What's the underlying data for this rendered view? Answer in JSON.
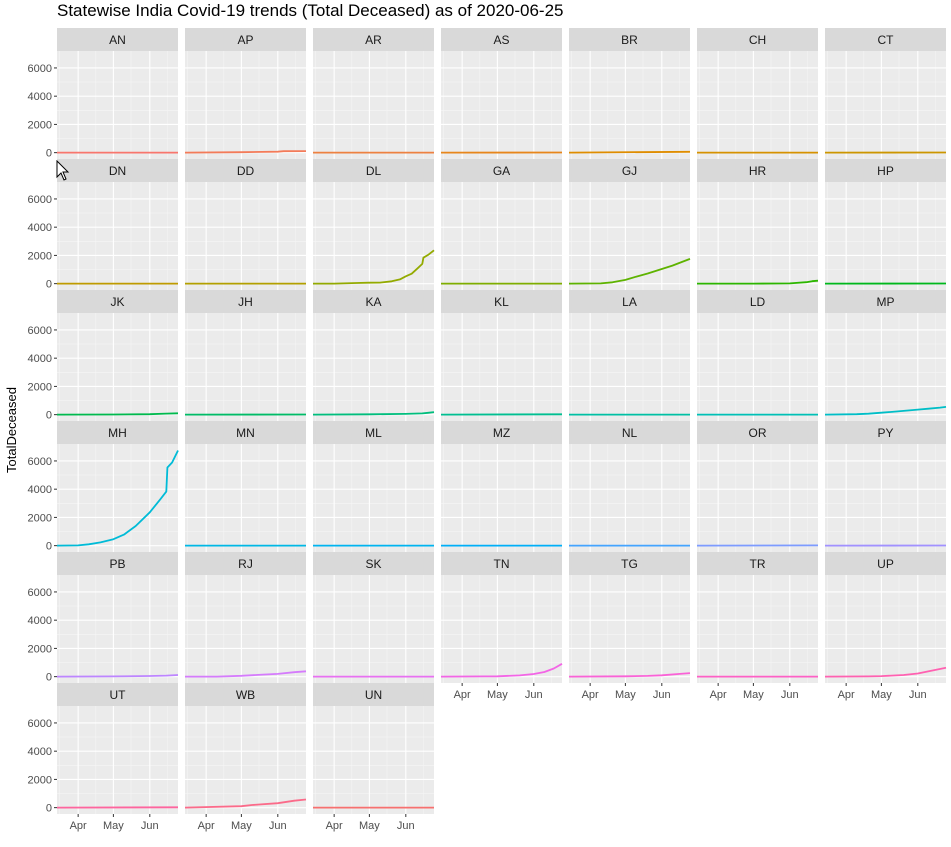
{
  "chart_data": {
    "type": "line",
    "title": "Statewise India Covid-19 trends (Total Deceased) as of 2020-06-25",
    "ylabel": "TotalDeceased",
    "xlabel": "",
    "layout": "facet_wrap",
    "ylim": [
      -450,
      7200
    ],
    "yticks": [
      0,
      2000,
      4000,
      6000
    ],
    "xlim": [
      "2020-03-14",
      "2020-06-25"
    ],
    "xticks": [
      {
        "date": "2020-04-01",
        "label": "Apr"
      },
      {
        "date": "2020-05-01",
        "label": "May"
      },
      {
        "date": "2020-06-01",
        "label": "Jun"
      }
    ],
    "grid": true,
    "legend": "none",
    "series": [
      {
        "name": "AN",
        "color": "#F8766D",
        "points": [
          [
            "2020-03-14",
            0
          ],
          [
            "2020-06-25",
            0
          ]
        ]
      },
      {
        "name": "AP",
        "color": "#F37B59",
        "points": [
          [
            "2020-03-14",
            0
          ],
          [
            "2020-05-01",
            31
          ],
          [
            "2020-06-01",
            64
          ],
          [
            "2020-06-06",
            100
          ],
          [
            "2020-06-25",
            111
          ]
        ]
      },
      {
        "name": "AR",
        "color": "#ED8141",
        "points": [
          [
            "2020-03-14",
            0
          ],
          [
            "2020-06-25",
            0
          ]
        ]
      },
      {
        "name": "AS",
        "color": "#E7861B",
        "points": [
          [
            "2020-03-14",
            0
          ],
          [
            "2020-06-25",
            9
          ]
        ]
      },
      {
        "name": "BR",
        "color": "#DF8D00",
        "points": [
          [
            "2020-03-14",
            0
          ],
          [
            "2020-06-25",
            60
          ]
        ]
      },
      {
        "name": "CH",
        "color": "#D69200",
        "points": [
          [
            "2020-03-14",
            0
          ],
          [
            "2020-06-25",
            6
          ]
        ]
      },
      {
        "name": "CT",
        "color": "#CC9600",
        "points": [
          [
            "2020-03-14",
            0
          ],
          [
            "2020-06-25",
            10
          ]
        ]
      },
      {
        "name": "DN",
        "color": "#BF9B00",
        "points": [
          [
            "2020-03-14",
            0
          ],
          [
            "2020-06-25",
            0
          ]
        ]
      },
      {
        "name": "DD",
        "color": "#B3A000",
        "points": [
          [
            "2020-03-14",
            0
          ],
          [
            "2020-06-25",
            0
          ]
        ]
      },
      {
        "name": "DL",
        "color": "#93AA00",
        "points": [
          [
            "2020-03-14",
            0
          ],
          [
            "2020-04-01",
            2
          ],
          [
            "2020-04-20",
            47
          ],
          [
            "2020-05-01",
            64
          ],
          [
            "2020-05-10",
            73
          ],
          [
            "2020-05-20",
            168
          ],
          [
            "2020-05-27",
            303
          ],
          [
            "2020-06-01",
            523
          ],
          [
            "2020-06-06",
            708
          ],
          [
            "2020-06-11",
            1085
          ],
          [
            "2020-06-15",
            1400
          ],
          [
            "2020-06-16",
            1837
          ],
          [
            "2020-06-20",
            2035
          ],
          [
            "2020-06-25",
            2365
          ]
        ]
      },
      {
        "name": "GA",
        "color": "#7FAE00",
        "points": [
          [
            "2020-03-14",
            0
          ],
          [
            "2020-06-25",
            1
          ]
        ]
      },
      {
        "name": "GJ",
        "color": "#5EB300",
        "points": [
          [
            "2020-03-14",
            0
          ],
          [
            "2020-04-10",
            19
          ],
          [
            "2020-04-20",
            95
          ],
          [
            "2020-05-01",
            262
          ],
          [
            "2020-05-10",
            493
          ],
          [
            "2020-05-20",
            719
          ],
          [
            "2020-06-01",
            1038
          ],
          [
            "2020-06-10",
            1280
          ],
          [
            "2020-06-18",
            1533
          ],
          [
            "2020-06-25",
            1753
          ]
        ]
      },
      {
        "name": "HR",
        "color": "#2CB600",
        "points": [
          [
            "2020-03-14",
            0
          ],
          [
            "2020-05-01",
            3
          ],
          [
            "2020-06-01",
            21
          ],
          [
            "2020-06-15",
            100
          ],
          [
            "2020-06-20",
            175
          ],
          [
            "2020-06-25",
            211
          ]
        ]
      },
      {
        "name": "HP",
        "color": "#00B81C",
        "points": [
          [
            "2020-03-14",
            0
          ],
          [
            "2020-06-25",
            9
          ]
        ]
      },
      {
        "name": "JK",
        "color": "#00BA4E",
        "points": [
          [
            "2020-03-14",
            0
          ],
          [
            "2020-05-01",
            8
          ],
          [
            "2020-06-01",
            33
          ],
          [
            "2020-06-15",
            72
          ],
          [
            "2020-06-25",
            94
          ]
        ]
      },
      {
        "name": "JH",
        "color": "#00BC67",
        "points": [
          [
            "2020-03-14",
            0
          ],
          [
            "2020-06-25",
            11
          ]
        ]
      },
      {
        "name": "KA",
        "color": "#00BE7D",
        "points": [
          [
            "2020-03-14",
            0
          ],
          [
            "2020-05-01",
            22
          ],
          [
            "2020-06-01",
            52
          ],
          [
            "2020-06-15",
            89
          ],
          [
            "2020-06-20",
            132
          ],
          [
            "2020-06-25",
            180
          ]
        ]
      },
      {
        "name": "KL",
        "color": "#00BF91",
        "points": [
          [
            "2020-03-14",
            0
          ],
          [
            "2020-06-25",
            22
          ]
        ]
      },
      {
        "name": "LA",
        "color": "#00C0A4",
        "points": [
          [
            "2020-03-14",
            0
          ],
          [
            "2020-06-25",
            1
          ]
        ]
      },
      {
        "name": "LD",
        "color": "#00C0B6",
        "points": [
          [
            "2020-03-14",
            0
          ],
          [
            "2020-06-25",
            0
          ]
        ]
      },
      {
        "name": "MP",
        "color": "#00BEC7",
        "points": [
          [
            "2020-03-14",
            0
          ],
          [
            "2020-04-10",
            33
          ],
          [
            "2020-04-20",
            70
          ],
          [
            "2020-05-01",
            137
          ],
          [
            "2020-05-15",
            232
          ],
          [
            "2020-06-01",
            358
          ],
          [
            "2020-06-10",
            420
          ],
          [
            "2020-06-20",
            501
          ],
          [
            "2020-06-25",
            550
          ]
        ]
      },
      {
        "name": "MH",
        "color": "#00BBD7",
        "points": [
          [
            "2020-03-14",
            0
          ],
          [
            "2020-04-01",
            17
          ],
          [
            "2020-04-10",
            97
          ],
          [
            "2020-04-20",
            232
          ],
          [
            "2020-05-01",
            459
          ],
          [
            "2020-05-10",
            779
          ],
          [
            "2020-05-20",
            1390
          ],
          [
            "2020-06-01",
            2362
          ],
          [
            "2020-06-10",
            3289
          ],
          [
            "2020-06-15",
            3830
          ],
          [
            "2020-06-16",
            5537
          ],
          [
            "2020-06-20",
            5893
          ],
          [
            "2020-06-25",
            6739
          ]
        ]
      },
      {
        "name": "MN",
        "color": "#00B8E5",
        "points": [
          [
            "2020-03-14",
            0
          ],
          [
            "2020-06-25",
            0
          ]
        ]
      },
      {
        "name": "ML",
        "color": "#00B4F0",
        "points": [
          [
            "2020-03-14",
            0
          ],
          [
            "2020-06-25",
            1
          ]
        ]
      },
      {
        "name": "MZ",
        "color": "#00AFF8",
        "points": [
          [
            "2020-03-14",
            0
          ],
          [
            "2020-06-25",
            0
          ]
        ]
      },
      {
        "name": "NL",
        "color": "#44A4FF",
        "points": [
          [
            "2020-03-14",
            0
          ],
          [
            "2020-06-25",
            0
          ]
        ]
      },
      {
        "name": "OR",
        "color": "#7D9BFF",
        "points": [
          [
            "2020-03-14",
            0
          ],
          [
            "2020-06-25",
            14
          ]
        ]
      },
      {
        "name": "PY",
        "color": "#A191FF",
        "points": [
          [
            "2020-03-14",
            0
          ],
          [
            "2020-06-25",
            9
          ]
        ]
      },
      {
        "name": "PB",
        "color": "#BD85FF",
        "points": [
          [
            "2020-03-14",
            0
          ],
          [
            "2020-05-01",
            21
          ],
          [
            "2020-06-01",
            45
          ],
          [
            "2020-06-15",
            71
          ],
          [
            "2020-06-25",
            120
          ]
        ]
      },
      {
        "name": "RJ",
        "color": "#D57BFC",
        "points": [
          [
            "2020-03-14",
            0
          ],
          [
            "2020-04-10",
            5
          ],
          [
            "2020-05-01",
            58
          ],
          [
            "2020-05-15",
            126
          ],
          [
            "2020-06-01",
            198
          ],
          [
            "2020-06-15",
            313
          ],
          [
            "2020-06-25",
            379
          ]
        ]
      },
      {
        "name": "SK",
        "color": "#E870F2",
        "points": [
          [
            "2020-03-14",
            0
          ],
          [
            "2020-06-25",
            0
          ]
        ]
      },
      {
        "name": "TN",
        "color": "#F365E6",
        "points": [
          [
            "2020-03-14",
            0
          ],
          [
            "2020-04-20",
            17
          ],
          [
            "2020-05-01",
            27
          ],
          [
            "2020-05-20",
            87
          ],
          [
            "2020-06-01",
            184
          ],
          [
            "2020-06-10",
            326
          ],
          [
            "2020-06-18",
            576
          ],
          [
            "2020-06-25",
            911
          ]
        ]
      },
      {
        "name": "TG",
        "color": "#FA62D7",
        "points": [
          [
            "2020-03-14",
            0
          ],
          [
            "2020-05-01",
            26
          ],
          [
            "2020-05-20",
            53
          ],
          [
            "2020-06-01",
            92
          ],
          [
            "2020-06-15",
            187
          ],
          [
            "2020-06-25",
            253
          ]
        ]
      },
      {
        "name": "TR",
        "color": "#FE60C6",
        "points": [
          [
            "2020-03-14",
            0
          ],
          [
            "2020-06-25",
            1
          ]
        ]
      },
      {
        "name": "UP",
        "color": "#FF61B1",
        "points": [
          [
            "2020-03-14",
            0
          ],
          [
            "2020-04-20",
            18
          ],
          [
            "2020-05-01",
            41
          ],
          [
            "2020-05-20",
            118
          ],
          [
            "2020-06-01",
            222
          ],
          [
            "2020-06-15",
            465
          ],
          [
            "2020-06-25",
            630
          ]
        ]
      },
      {
        "name": "UT",
        "color": "#FE659E",
        "points": [
          [
            "2020-03-14",
            0
          ],
          [
            "2020-06-25",
            26
          ]
        ]
      },
      {
        "name": "WB",
        "color": "#FB6B8A",
        "points": [
          [
            "2020-03-14",
            0
          ],
          [
            "2020-05-01",
            105
          ],
          [
            "2020-05-10",
            185
          ],
          [
            "2020-06-01",
            317
          ],
          [
            "2020-06-15",
            495
          ],
          [
            "2020-06-25",
            580
          ]
        ]
      },
      {
        "name": "UN",
        "color": "#F7706F",
        "points": [
          [
            "2020-03-14",
            0
          ],
          [
            "2020-06-25",
            0
          ]
        ]
      }
    ]
  }
}
